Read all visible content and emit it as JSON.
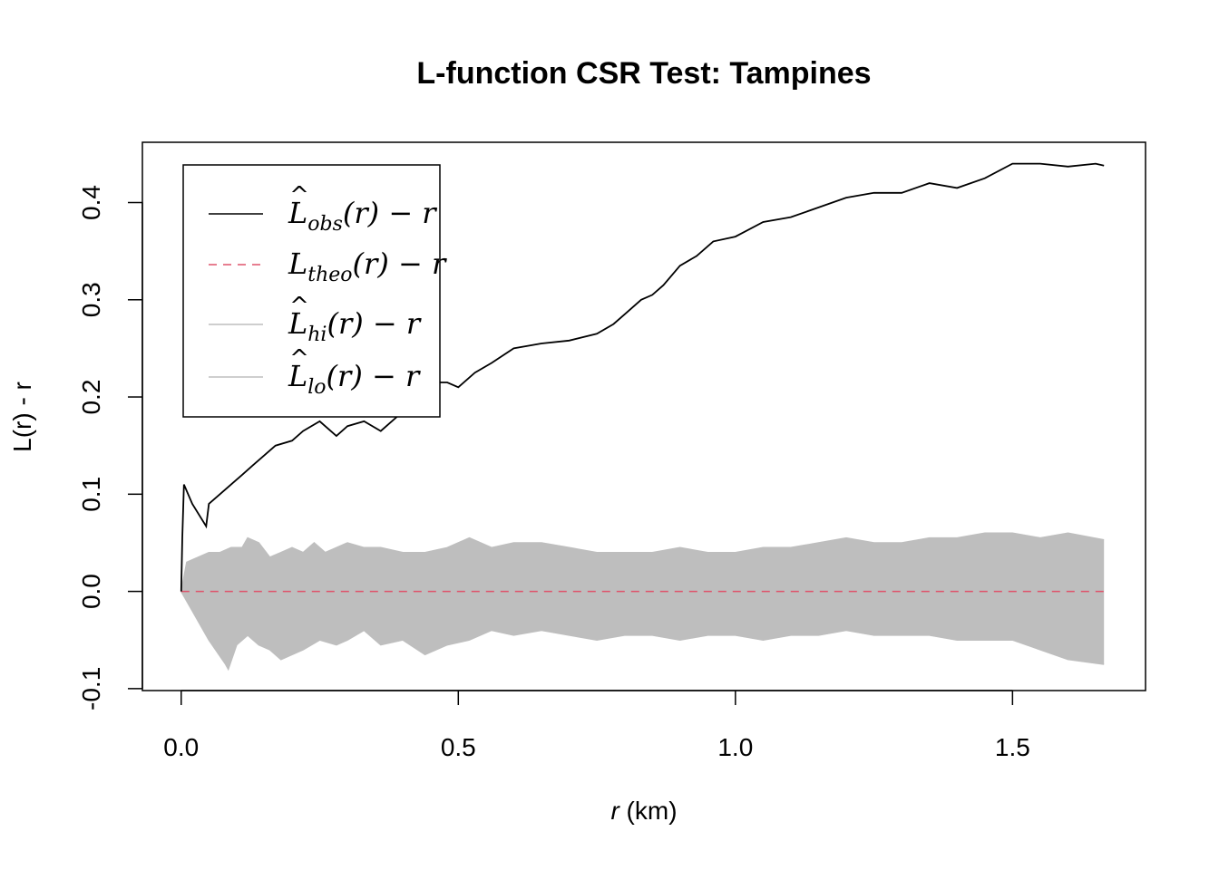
{
  "chart_data": {
    "type": "line",
    "title": "L-function CSR Test: Tampines",
    "xlabel_italic": "r",
    "xlabel_rest": " (km)",
    "ylabel": "L(r) - r",
    "xlim": [
      -0.07,
      1.74
    ],
    "ylim": [
      -0.102,
      0.462
    ],
    "xticks": [
      {
        "value": 0.0,
        "label": "0.0"
      },
      {
        "value": 0.5,
        "label": "0.5"
      },
      {
        "value": 1.0,
        "label": "1.0"
      },
      {
        "value": 1.5,
        "label": "1.5"
      }
    ],
    "yticks": [
      {
        "value": -0.1,
        "label": "-0.1"
      },
      {
        "value": 0.0,
        "label": "0.0"
      },
      {
        "value": 0.1,
        "label": "0.1"
      },
      {
        "value": 0.2,
        "label": "0.2"
      },
      {
        "value": 0.3,
        "label": "0.3"
      },
      {
        "value": 0.4,
        "label": "0.4"
      }
    ],
    "legend": {
      "position": "top-left",
      "entries": [
        {
          "id": "obs",
          "base": "L",
          "hat": true,
          "sub": "obs",
          "tail": "(r) − r",
          "color": "#000000",
          "dash": false
        },
        {
          "id": "theo",
          "base": "L",
          "hat": false,
          "sub": "theo",
          "tail": "(r) − r",
          "color": "#DF536B",
          "dash": true
        },
        {
          "id": "hi",
          "base": "L",
          "hat": true,
          "sub": "hi",
          "tail": "(r) − r",
          "color": "#BEBEBE",
          "dash": false
        },
        {
          "id": "lo",
          "base": "L",
          "hat": true,
          "sub": "lo",
          "tail": "(r) − r",
          "color": "#BEBEBE",
          "dash": false
        }
      ]
    },
    "series": [
      {
        "name": "obs",
        "color": "#000000",
        "x": [
          0.0,
          0.002,
          0.005,
          0.02,
          0.045,
          0.05,
          0.07,
          0.09,
          0.11,
          0.13,
          0.15,
          0.17,
          0.2,
          0.22,
          0.25,
          0.28,
          0.3,
          0.33,
          0.36,
          0.39,
          0.42,
          0.45,
          0.48,
          0.5,
          0.53,
          0.56,
          0.6,
          0.65,
          0.7,
          0.75,
          0.78,
          0.8,
          0.83,
          0.85,
          0.87,
          0.9,
          0.93,
          0.96,
          1.0,
          1.05,
          1.1,
          1.15,
          1.2,
          1.25,
          1.3,
          1.35,
          1.4,
          1.45,
          1.5,
          1.55,
          1.6,
          1.65,
          1.665
        ],
        "y": [
          0.0,
          0.055,
          0.11,
          0.09,
          0.067,
          0.09,
          0.1,
          0.11,
          0.12,
          0.13,
          0.14,
          0.15,
          0.155,
          0.165,
          0.175,
          0.16,
          0.17,
          0.175,
          0.165,
          0.18,
          0.2,
          0.215,
          0.215,
          0.21,
          0.225,
          0.235,
          0.25,
          0.255,
          0.258,
          0.265,
          0.275,
          0.285,
          0.3,
          0.305,
          0.315,
          0.335,
          0.345,
          0.36,
          0.365,
          0.38,
          0.385,
          0.395,
          0.405,
          0.41,
          0.41,
          0.42,
          0.415,
          0.425,
          0.44,
          0.44,
          0.437,
          0.44,
          0.438
        ]
      },
      {
        "name": "theo",
        "color": "#DF536B",
        "x": [
          0.0,
          1.665
        ],
        "y": [
          0.0,
          0.0
        ]
      },
      {
        "name": "hi",
        "color": "#BEBEBE",
        "x": [
          0.0,
          0.01,
          0.03,
          0.05,
          0.07,
          0.09,
          0.11,
          0.12,
          0.14,
          0.16,
          0.18,
          0.2,
          0.22,
          0.24,
          0.26,
          0.28,
          0.3,
          0.33,
          0.36,
          0.4,
          0.44,
          0.48,
          0.52,
          0.56,
          0.6,
          0.65,
          0.7,
          0.75,
          0.8,
          0.85,
          0.9,
          0.95,
          1.0,
          1.05,
          1.1,
          1.15,
          1.2,
          1.25,
          1.3,
          1.35,
          1.4,
          1.45,
          1.5,
          1.55,
          1.6,
          1.665
        ],
        "y": [
          0.0,
          0.03,
          0.035,
          0.04,
          0.04,
          0.045,
          0.045,
          0.055,
          0.05,
          0.035,
          0.04,
          0.045,
          0.04,
          0.05,
          0.04,
          0.045,
          0.05,
          0.045,
          0.045,
          0.04,
          0.04,
          0.045,
          0.055,
          0.045,
          0.05,
          0.05,
          0.045,
          0.04,
          0.04,
          0.04,
          0.045,
          0.04,
          0.04,
          0.045,
          0.045,
          0.05,
          0.055,
          0.05,
          0.05,
          0.055,
          0.055,
          0.06,
          0.06,
          0.055,
          0.06,
          0.053
        ]
      },
      {
        "name": "lo",
        "color": "#BEBEBE",
        "x": [
          0.0,
          0.02,
          0.05,
          0.08,
          0.085,
          0.1,
          0.12,
          0.14,
          0.16,
          0.18,
          0.2,
          0.22,
          0.25,
          0.28,
          0.3,
          0.33,
          0.36,
          0.4,
          0.44,
          0.48,
          0.52,
          0.56,
          0.6,
          0.65,
          0.7,
          0.75,
          0.8,
          0.85,
          0.9,
          0.95,
          1.0,
          1.05,
          1.1,
          1.15,
          1.2,
          1.25,
          1.3,
          1.35,
          1.4,
          1.45,
          1.5,
          1.55,
          1.6,
          1.665
        ],
        "y": [
          0.0,
          -0.02,
          -0.05,
          -0.075,
          -0.08,
          -0.055,
          -0.045,
          -0.055,
          -0.06,
          -0.07,
          -0.065,
          -0.06,
          -0.05,
          -0.055,
          -0.05,
          -0.04,
          -0.055,
          -0.05,
          -0.065,
          -0.055,
          -0.05,
          -0.04,
          -0.045,
          -0.04,
          -0.045,
          -0.05,
          -0.045,
          -0.045,
          -0.05,
          -0.045,
          -0.045,
          -0.05,
          -0.045,
          -0.045,
          -0.04,
          -0.045,
          -0.045,
          -0.045,
          -0.05,
          -0.05,
          -0.05,
          -0.06,
          -0.07,
          -0.075
        ]
      }
    ]
  }
}
